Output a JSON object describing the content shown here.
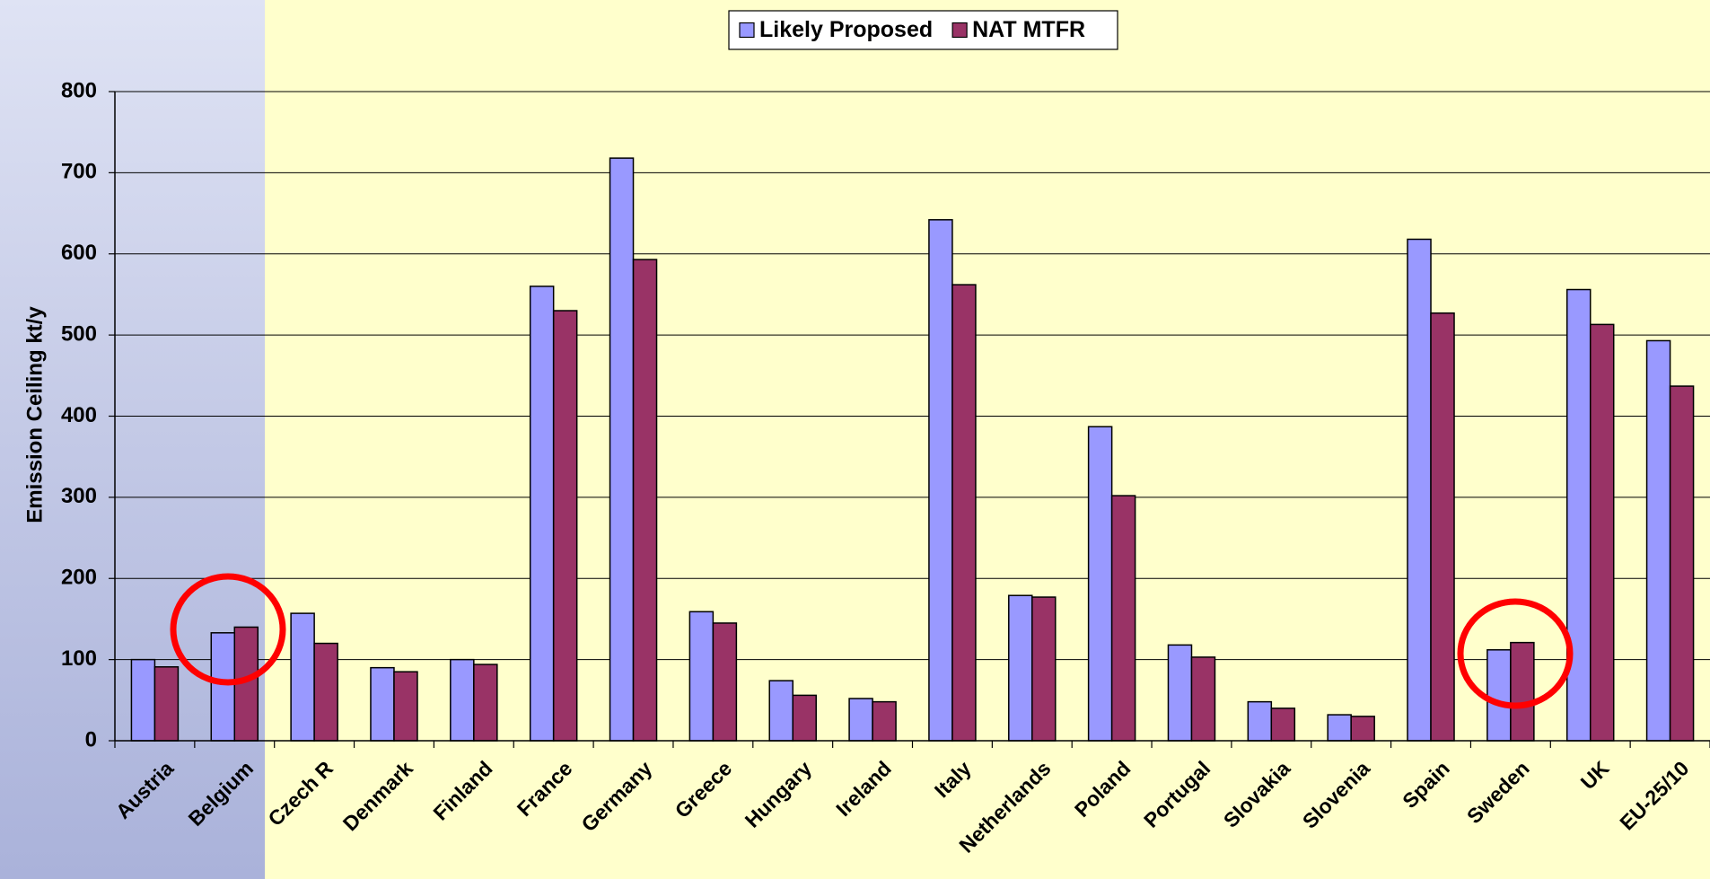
{
  "chart_data": {
    "type": "bar",
    "y_label": "Emission Ceiling kt/y",
    "categories": [
      "Austria",
      "Belgium",
      "Czech R",
      "Denmark",
      "Finland",
      "France",
      "Germany",
      "Greece",
      "Hungary",
      "Ireland",
      "Italy",
      "Netherlands",
      "Poland",
      "Portugal",
      "Slovakia",
      "Slovenia",
      "Spain",
      "Sweden",
      "UK",
      "EU-25/10"
    ],
    "series": [
      {
        "name": "Likely Proposed",
        "color": "#9999ff",
        "values": [
          100,
          133,
          157,
          90,
          100,
          560,
          718,
          159,
          74,
          52,
          642,
          179,
          387,
          118,
          48,
          32,
          618,
          112,
          556,
          493
        ]
      },
      {
        "name": "NAT MTFR",
        "color": "#993366",
        "values": [
          91,
          140,
          120,
          85,
          94,
          530,
          593,
          145,
          56,
          48,
          562,
          177,
          302,
          103,
          40,
          30,
          527,
          121,
          513,
          437
        ]
      }
    ],
    "ylim": [
      0,
      800
    ],
    "yticks": [
      0,
      100,
      200,
      300,
      400,
      500,
      600,
      700,
      800
    ],
    "grid": true,
    "legend": "top"
  }
}
